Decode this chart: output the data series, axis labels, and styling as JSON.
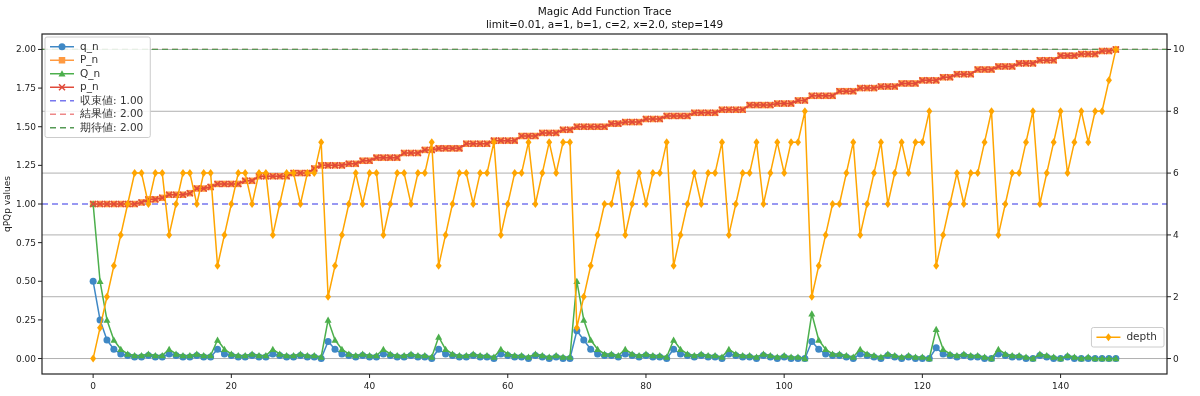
{
  "chart_data": {
    "type": "line",
    "title": "Magic Add Function Trace",
    "subtitle": "limit=0.01, a=1, b=1, c=2, x=2.0, step=149",
    "ylabel": "qPQp values",
    "x": [
      0,
      1,
      2,
      3,
      4,
      5,
      6,
      7,
      8,
      9,
      10,
      11,
      12,
      13,
      14,
      15,
      16,
      17,
      18,
      19,
      20,
      21,
      22,
      23,
      24,
      25,
      26,
      27,
      28,
      29,
      30,
      31,
      32,
      33,
      34,
      35,
      36,
      37,
      38,
      39,
      40,
      41,
      42,
      43,
      44,
      45,
      46,
      47,
      48,
      49,
      50,
      51,
      52,
      53,
      54,
      55,
      56,
      57,
      58,
      59,
      60,
      61,
      62,
      63,
      64,
      65,
      66,
      67,
      68,
      69,
      70,
      71,
      72,
      73,
      74,
      75,
      76,
      77,
      78,
      79,
      80,
      81,
      82,
      83,
      84,
      85,
      86,
      87,
      88,
      89,
      90,
      91,
      92,
      93,
      94,
      95,
      96,
      97,
      98,
      99,
      100,
      101,
      102,
      103,
      104,
      105,
      106,
      107,
      108,
      109,
      110,
      111,
      112,
      113,
      114,
      115,
      116,
      117,
      118,
      119,
      120,
      121,
      122,
      123,
      124,
      125,
      126,
      127,
      128,
      129,
      130,
      131,
      132,
      133,
      134,
      135,
      136,
      137,
      138,
      139,
      140,
      141,
      142,
      143,
      144,
      145,
      146,
      147,
      148
    ],
    "xlim": [
      -7.4,
      155.4
    ],
    "xticks": [
      0,
      20,
      40,
      60,
      80,
      100,
      120,
      140
    ],
    "ylim": [
      -0.1,
      2.1
    ],
    "yticks": [
      {
        "value": 0,
        "label": "0.00"
      },
      {
        "value": 0.25,
        "label": "0.25"
      },
      {
        "value": 0.5,
        "label": "0.50"
      },
      {
        "value": 0.75,
        "label": "0.75"
      },
      {
        "value": 1,
        "label": "1.00"
      },
      {
        "value": 1.25,
        "label": "1.25"
      },
      {
        "value": 1.5,
        "label": "1.50"
      },
      {
        "value": 1.75,
        "label": "1.75"
      },
      {
        "value": 2,
        "label": "2.00"
      }
    ],
    "y2lim": [
      -0.5,
      10.5
    ],
    "y2ticks": [
      0,
      2,
      4,
      6,
      8,
      10
    ],
    "grid": "y",
    "legend": "top left",
    "series": [
      {
        "name": "q_n",
        "color": "#3f88c5",
        "marker": "circle",
        "values": [
          0.5,
          0.25,
          0.12,
          0.06,
          0.03,
          0.02,
          0.01,
          0.01,
          0.02,
          0.01,
          0.01,
          0.03,
          0.02,
          0.01,
          0.01,
          0.02,
          0.01,
          0.01,
          0.06,
          0.03,
          0.02,
          0.01,
          0.01,
          0.02,
          0.01,
          0.01,
          0.03,
          0.02,
          0.01,
          0.01,
          0.02,
          0.01,
          0.01,
          0,
          0.11,
          0.06,
          0.03,
          0.02,
          0.01,
          0.02,
          0.01,
          0.01,
          0.03,
          0.02,
          0.01,
          0.01,
          0.02,
          0.01,
          0.01,
          0,
          0.06,
          0.03,
          0.02,
          0.01,
          0.01,
          0.02,
          0.01,
          0.01,
          0,
          0.03,
          0.02,
          0.01,
          0.01,
          0,
          0.02,
          0.01,
          0,
          0.01,
          0,
          0,
          0.18,
          0.12,
          0.06,
          0.03,
          0.02,
          0.02,
          0.01,
          0.03,
          0.02,
          0.01,
          0.02,
          0.01,
          0.01,
          0,
          0.06,
          0.03,
          0.02,
          0.01,
          0.02,
          0.01,
          0.01,
          0,
          0.03,
          0.02,
          0.01,
          0.01,
          0,
          0.02,
          0.01,
          0,
          0.01,
          0,
          0,
          0,
          0.11,
          0.06,
          0.03,
          0.02,
          0.02,
          0.01,
          0,
          0.03,
          0.02,
          0.01,
          0,
          0.02,
          0.01,
          0,
          0.01,
          0,
          0,
          0,
          0.07,
          0.03,
          0.02,
          0.01,
          0.02,
          0.01,
          0.01,
          0,
          0,
          0.03,
          0.02,
          0.01,
          0.01,
          0,
          0,
          0.02,
          0.01,
          0,
          0,
          0.01,
          0,
          0,
          0,
          0,
          0,
          0,
          0
        ]
      },
      {
        "name": "P_n",
        "color": "#ff9a40",
        "marker": "square",
        "values": [
          1,
          1,
          1,
          1,
          1,
          1,
          1,
          1.01,
          1.03,
          1.03,
          1.04,
          1.06,
          1.06,
          1.06,
          1.07,
          1.1,
          1.1,
          1.11,
          1.13,
          1.13,
          1.13,
          1.13,
          1.15,
          1.15,
          1.18,
          1.18,
          1.18,
          1.18,
          1.18,
          1.2,
          1.2,
          1.2,
          1.23,
          1.25,
          1.25,
          1.25,
          1.25,
          1.26,
          1.26,
          1.28,
          1.28,
          1.3,
          1.3,
          1.3,
          1.3,
          1.33,
          1.33,
          1.33,
          1.35,
          1.35,
          1.36,
          1.36,
          1.36,
          1.36,
          1.39,
          1.39,
          1.39,
          1.39,
          1.41,
          1.41,
          1.41,
          1.41,
          1.44,
          1.44,
          1.44,
          1.46,
          1.46,
          1.46,
          1.48,
          1.48,
          1.5,
          1.5,
          1.5,
          1.5,
          1.5,
          1.52,
          1.52,
          1.53,
          1.53,
          1.53,
          1.55,
          1.55,
          1.55,
          1.57,
          1.57,
          1.57,
          1.57,
          1.59,
          1.59,
          1.59,
          1.59,
          1.61,
          1.61,
          1.61,
          1.61,
          1.64,
          1.64,
          1.64,
          1.64,
          1.65,
          1.65,
          1.65,
          1.67,
          1.67,
          1.7,
          1.7,
          1.7,
          1.7,
          1.73,
          1.73,
          1.73,
          1.75,
          1.75,
          1.75,
          1.76,
          1.76,
          1.76,
          1.78,
          1.78,
          1.78,
          1.8,
          1.8,
          1.8,
          1.82,
          1.82,
          1.84,
          1.84,
          1.84,
          1.87,
          1.87,
          1.87,
          1.89,
          1.89,
          1.89,
          1.91,
          1.91,
          1.91,
          1.93,
          1.93,
          1.93,
          1.96,
          1.96,
          1.96,
          1.97,
          1.97,
          1.97,
          1.99,
          1.99,
          2
        ]
      },
      {
        "name": "Q_n",
        "color": "#4caf4c",
        "marker": "triangle",
        "values": [
          1,
          0.5,
          0.25,
          0.12,
          0.06,
          0.03,
          0.02,
          0.02,
          0.03,
          0.02,
          0.02,
          0.06,
          0.03,
          0.02,
          0.02,
          0.03,
          0.02,
          0.02,
          0.12,
          0.06,
          0.03,
          0.02,
          0.02,
          0.03,
          0.02,
          0.02,
          0.06,
          0.03,
          0.02,
          0.02,
          0.03,
          0.02,
          0.02,
          0.01,
          0.25,
          0.12,
          0.06,
          0.03,
          0.02,
          0.03,
          0.02,
          0.02,
          0.06,
          0.03,
          0.02,
          0.02,
          0.03,
          0.02,
          0.02,
          0.01,
          0.14,
          0.06,
          0.03,
          0.02,
          0.02,
          0.03,
          0.02,
          0.02,
          0.01,
          0.06,
          0.03,
          0.02,
          0.02,
          0.01,
          0.03,
          0.02,
          0.01,
          0.02,
          0.01,
          0.01,
          0.5,
          0.25,
          0.12,
          0.06,
          0.03,
          0.03,
          0.02,
          0.06,
          0.03,
          0.02,
          0.03,
          0.02,
          0.02,
          0.01,
          0.12,
          0.06,
          0.03,
          0.02,
          0.03,
          0.02,
          0.02,
          0.01,
          0.06,
          0.03,
          0.02,
          0.02,
          0.01,
          0.03,
          0.02,
          0.01,
          0.02,
          0.01,
          0.01,
          0,
          0.29,
          0.12,
          0.06,
          0.03,
          0.03,
          0.02,
          0.01,
          0.06,
          0.03,
          0.02,
          0.01,
          0.03,
          0.02,
          0.01,
          0.02,
          0.01,
          0.01,
          0,
          0.19,
          0.06,
          0.03,
          0.02,
          0.03,
          0.02,
          0.02,
          0.01,
          0,
          0.06,
          0.03,
          0.02,
          0.02,
          0.01,
          0,
          0.03,
          0.02,
          0.01,
          0,
          0.02,
          0.01,
          0,
          0.01,
          0,
          0,
          0,
          0
        ]
      },
      {
        "name": "p_n",
        "color": "#e04a3a",
        "marker": "cross",
        "values": [
          1,
          1,
          1,
          1,
          1,
          1,
          1,
          1.01,
          1.03,
          1.03,
          1.04,
          1.06,
          1.06,
          1.06,
          1.07,
          1.1,
          1.1,
          1.11,
          1.13,
          1.13,
          1.13,
          1.13,
          1.15,
          1.15,
          1.18,
          1.18,
          1.18,
          1.18,
          1.18,
          1.2,
          1.2,
          1.2,
          1.23,
          1.25,
          1.25,
          1.25,
          1.25,
          1.26,
          1.26,
          1.28,
          1.28,
          1.3,
          1.3,
          1.3,
          1.3,
          1.33,
          1.33,
          1.33,
          1.35,
          1.35,
          1.36,
          1.36,
          1.36,
          1.36,
          1.39,
          1.39,
          1.39,
          1.39,
          1.41,
          1.41,
          1.41,
          1.41,
          1.44,
          1.44,
          1.44,
          1.46,
          1.46,
          1.46,
          1.48,
          1.48,
          1.5,
          1.5,
          1.5,
          1.5,
          1.5,
          1.52,
          1.52,
          1.53,
          1.53,
          1.53,
          1.55,
          1.55,
          1.55,
          1.57,
          1.57,
          1.57,
          1.57,
          1.59,
          1.59,
          1.59,
          1.59,
          1.61,
          1.61,
          1.61,
          1.61,
          1.64,
          1.64,
          1.64,
          1.64,
          1.65,
          1.65,
          1.65,
          1.67,
          1.67,
          1.7,
          1.7,
          1.7,
          1.7,
          1.73,
          1.73,
          1.73,
          1.75,
          1.75,
          1.75,
          1.76,
          1.76,
          1.76,
          1.78,
          1.78,
          1.78,
          1.8,
          1.8,
          1.8,
          1.82,
          1.82,
          1.84,
          1.84,
          1.84,
          1.87,
          1.87,
          1.87,
          1.89,
          1.89,
          1.89,
          1.91,
          1.91,
          1.91,
          1.93,
          1.93,
          1.93,
          1.96,
          1.96,
          1.96,
          1.97,
          1.97,
          1.97,
          1.99,
          1.99,
          2
        ]
      },
      {
        "name": "depth",
        "color": "#ffa500",
        "marker": "diamond",
        "axis": "y2",
        "values": [
          0,
          1,
          2,
          3,
          4,
          5,
          6,
          6,
          5,
          6,
          6,
          4,
          5,
          6,
          6,
          5,
          6,
          6,
          3,
          4,
          5,
          6,
          6,
          5,
          6,
          6,
          4,
          5,
          6,
          6,
          5,
          6,
          6,
          7,
          2,
          3,
          4,
          5,
          6,
          5,
          6,
          6,
          4,
          5,
          6,
          6,
          5,
          6,
          6,
          7,
          3,
          4,
          5,
          6,
          6,
          5,
          6,
          6,
          7,
          4,
          5,
          6,
          6,
          7,
          5,
          6,
          7,
          6,
          7,
          7,
          1,
          2,
          3,
          4,
          5,
          5,
          6,
          4,
          5,
          6,
          5,
          6,
          6,
          7,
          3,
          4,
          5,
          6,
          5,
          6,
          6,
          7,
          4,
          5,
          6,
          6,
          7,
          5,
          6,
          7,
          6,
          7,
          7,
          8,
          2,
          3,
          4,
          5,
          5,
          6,
          7,
          4,
          5,
          6,
          7,
          5,
          6,
          7,
          6,
          7,
          7,
          8,
          3,
          4,
          5,
          6,
          5,
          6,
          6,
          7,
          8,
          4,
          5,
          6,
          6,
          7,
          8,
          5,
          6,
          7,
          8,
          6,
          7,
          8,
          7,
          8,
          8,
          9,
          10
        ]
      }
    ],
    "ref_lines": [
      {
        "axis": "y",
        "value": 1,
        "label": "収束値: 1.00",
        "color": "#7777ee",
        "line_style": "dashed"
      },
      {
        "axis": "y",
        "value": 2,
        "label": "結果値: 2.00",
        "color": "#ee8888",
        "line_style": "dashed"
      },
      {
        "axis": "y",
        "value": 2,
        "label": "期待値: 2.00",
        "color": "#559955",
        "line_style": "dashed"
      }
    ]
  }
}
